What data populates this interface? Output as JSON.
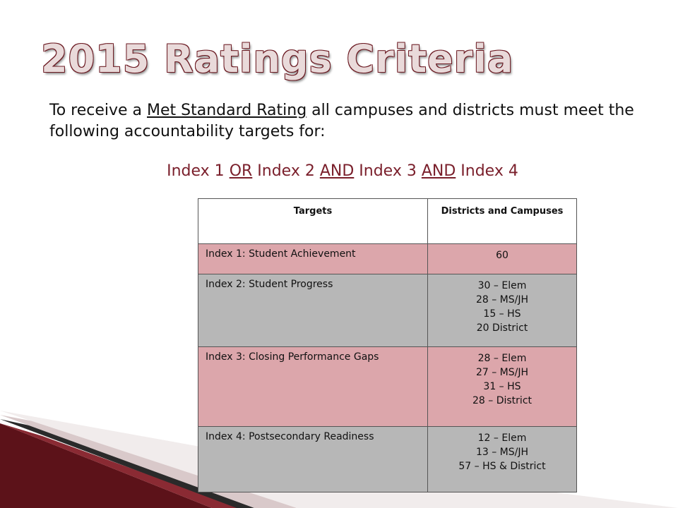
{
  "title": "2015 Ratings Criteria",
  "intro": {
    "before": "To receive a ",
    "underlined": "Met Standard Rating",
    "after": " all campuses and districts must meet the following accountability targets for:"
  },
  "index_line": {
    "p1": "Index 1 ",
    "or": "OR",
    "p2": " Index 2 ",
    "and1": "AND",
    "p3": " Index 3 ",
    "and2": "AND",
    "p4": " Index 4"
  },
  "table": {
    "headers": [
      "Targets",
      "Districts and Campuses"
    ],
    "rows": [
      {
        "target": "Index 1: Student Achievement",
        "values": [
          "60"
        ]
      },
      {
        "target": "Index 2:  Student Progress",
        "values": [
          "30 – Elem",
          "28 – MS/JH",
          "15 – HS",
          "20 District"
        ]
      },
      {
        "target": "Index 3:  Closing Performance Gaps",
        "values": [
          "28 – Elem",
          "27 – MS/JH",
          "31 – HS",
          "28 – District"
        ]
      },
      {
        "target": "Index 4:  Postsecondary Readiness",
        "values": [
          "12 – Elem",
          "13 – MS/JH",
          "57 – HS & District"
        ]
      }
    ]
  },
  "colors": {
    "accent": "#7a1f2b",
    "pink_row": "#dca6ab",
    "gray_row": "#b7b7b7"
  }
}
